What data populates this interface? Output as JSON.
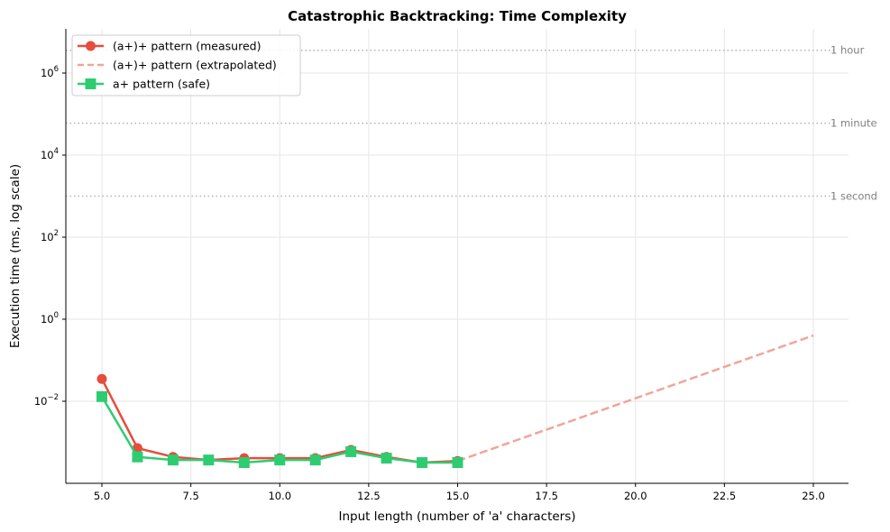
{
  "chart_data": {
    "type": "line",
    "title": "Catastrophic Backtracking: Time Complexity",
    "xlabel": "Input length (number of 'a' characters)",
    "ylabel": "Execution time (ms, log scale)",
    "xlim": [
      4.0,
      26.0
    ],
    "ylim_log10": [
      -4.0,
      7.05
    ],
    "yscale": "log",
    "grid": true,
    "legend_position": "upper left",
    "x_ticks": [
      5.0,
      7.5,
      10.0,
      12.5,
      15.0,
      17.5,
      20.0,
      22.5,
      25.0
    ],
    "x_tick_labels": [
      "5.0",
      "7.5",
      "10.0",
      "12.5",
      "15.0",
      "17.5",
      "20.0",
      "22.5",
      "25.0"
    ],
    "y_ticks_exp": [
      -2,
      0,
      2,
      4,
      6
    ],
    "series": [
      {
        "name": "(a+)+ pattern (measured)",
        "style": "solid",
        "marker": "circle",
        "color": "#e74c3c",
        "x": [
          5,
          6,
          7,
          8,
          9,
          10,
          11,
          12,
          13,
          14,
          15
        ],
        "values": [
          0.035,
          0.00072,
          0.00044,
          0.00037,
          0.00041,
          0.00041,
          0.00041,
          0.00065,
          0.00044,
          0.00032,
          0.00035
        ]
      },
      {
        "name": "(a+)+ pattern (extrapolated)",
        "style": "dashed",
        "marker": "none",
        "color": "#f1a59a",
        "x": [
          15,
          25
        ],
        "values": [
          0.00035,
          0.4
        ]
      },
      {
        "name": "a+ pattern (safe)",
        "style": "solid",
        "marker": "square",
        "color": "#2ecc71",
        "x": [
          5,
          6,
          7,
          8,
          9,
          10,
          11,
          12,
          13,
          14,
          15
        ],
        "values": [
          0.013,
          0.00044,
          0.00037,
          0.00037,
          0.00032,
          0.00037,
          0.00037,
          0.00059,
          0.00041,
          0.00032,
          0.00032
        ]
      }
    ],
    "reference_lines": [
      {
        "label": "1 hour",
        "value": 3600000
      },
      {
        "label": "1 minute",
        "value": 60000
      },
      {
        "label": "1 second",
        "value": 1000
      }
    ]
  }
}
